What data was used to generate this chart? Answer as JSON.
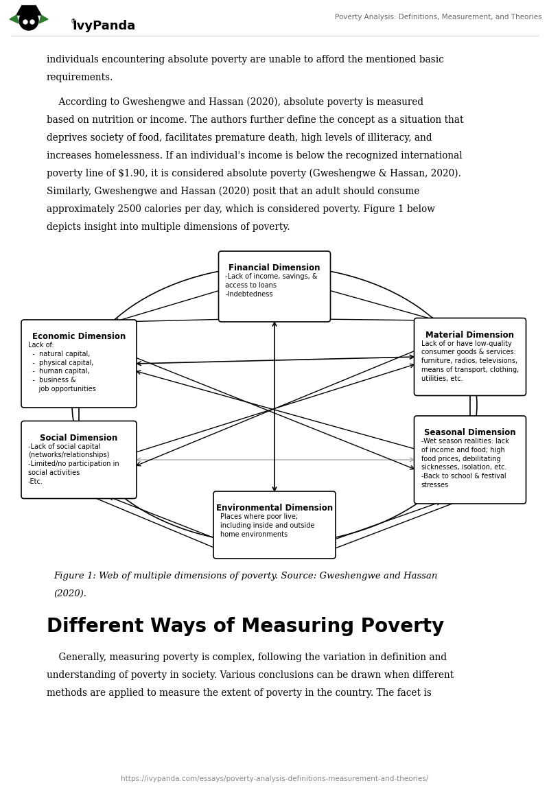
{
  "page_title": "Poverty Analysis: Definitions, Measurement, and Theories",
  "header_line1": "individuals encountering absolute poverty are unable to afford the mentioned basic",
  "header_line2": "requirements.",
  "para_lines": [
    "    According to Gweshengwe and Hassan (2020), absolute poverty is measured",
    "based on nutrition or income. The authors further define the concept as a situation that",
    "deprives society of food, facilitates premature death, high levels of illiteracy, and",
    "increases homelessness. If an individual's income is below the recognized international",
    "poverty line of $1.90, it is considered absolute poverty (Gweshengwe & Hassan, 2020).",
    "Similarly, Gweshengwe and Hassan (2020) posit that an adult should consume",
    "approximately 2500 calories per day, which is considered poverty. Figure 1 below",
    "depicts insight into multiple dimensions of poverty."
  ],
  "nodes": {
    "financial": {
      "title": "Financial Dimension",
      "body": "-Lack of income, savings, &\naccess to loans\n-Indebtedness"
    },
    "economic": {
      "title": "Economic Dimension",
      "body": "Lack of:\n  -  natural capital,\n  -  physical capital,\n  -  human capital,\n  -  business &\n     job opportunities"
    },
    "material": {
      "title": "Material Dimension",
      "body": "Lack of or have low-quality\nconsumer goods & services:\nfurniture, radios, televisions,\nmeans of transport, clothing,\nutilities, etc."
    },
    "social": {
      "title": "Social Dimension",
      "body": "-Lack of social capital\n(networks/relationships)\n-Limited/no participation in\nsocial activities\n-Etc."
    },
    "seasonal": {
      "title": "Seasonal Dimension",
      "body": "-Wet season realities: lack\nof income and food; high\nfood prices, debilitating\nsicknesses, isolation, etc.\n-Back to school & festival\nstresses"
    },
    "environmental": {
      "title": "Environmental Dimension",
      "body": "Places where poor live;\nincluding inside and outside\nhome environments"
    }
  },
  "figure_caption_line1": "Figure 1: Web of multiple dimensions of poverty. Source: Gweshengwe and Hassan",
  "figure_caption_line2": "(2020).",
  "section_title": "Different Ways of Measuring Poverty",
  "body_lines": [
    "    Generally, measuring poverty is complex, following the variation in definition and",
    "understanding of poverty in society. Various conclusions can be drawn when different",
    "methods are applied to measure the extent of poverty in the country. The facet is"
  ],
  "footer_url": "https://ivypanda.com/essays/poverty-analysis-definitions-measurement-and-theories/",
  "bg_color": "#ffffff",
  "text_color": "#000000",
  "logo_color": "#000000",
  "green_color": "#2e7d2e",
  "header_title_color": "#666666",
  "caption_color": "#333333",
  "footer_color": "#888888"
}
